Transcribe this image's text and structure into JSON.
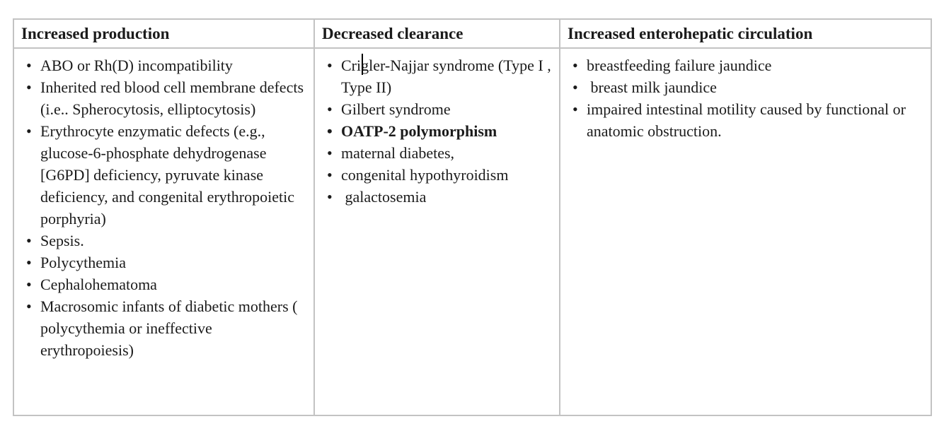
{
  "table": {
    "columns": [
      {
        "header": "Increased production",
        "items": [
          {
            "text": "ABO or Rh(D) incompatibility"
          },
          {
            "text": "Inherited red blood cell membrane defects (i.e.. Spherocytosis, elliptocytosis)"
          },
          {
            "text": "Erythrocyte enzymatic defects (e.g., glucose-6-phosphate dehydrogenase [G6PD] deficiency, pyruvate kinase deficiency, and congenital erythropoietic porphyria)"
          },
          {
            "text": "Sepsis."
          },
          {
            "text": "Polycythemia"
          },
          {
            "text": "Cephalohematoma"
          },
          {
            "text": "Macrosomic infants of diabetic mothers ( polycythemia or ineffective erythropoiesis)"
          }
        ]
      },
      {
        "header": "Decreased clearance",
        "items": [
          {
            "text": "Crigler-Najjar syndrome (Type I , Type II)"
          },
          {
            "text": "Gilbert syndrome"
          },
          {
            "text": "OATP-2 polymorphism",
            "bold": true
          },
          {
            "text": "maternal diabetes,"
          },
          {
            "text": "congenital hypothyroidism"
          },
          {
            "text": " galactosemia"
          }
        ]
      },
      {
        "header": "Increased enterohepatic circulation",
        "items": [
          {
            "text": "breastfeeding failure jaundice"
          },
          {
            "text": " breast milk jaundice"
          },
          {
            "text": "impaired intestinal motility caused by functional or anatomic obstruction."
          }
        ]
      }
    ]
  },
  "cursor": {
    "present_in": "Decreased clearance, first item, over the g of Crigler"
  },
  "colors": {
    "text": "#1b1b1b",
    "table_border": "#c3c3c3",
    "background": "#ffffff",
    "caret": "#000000"
  }
}
